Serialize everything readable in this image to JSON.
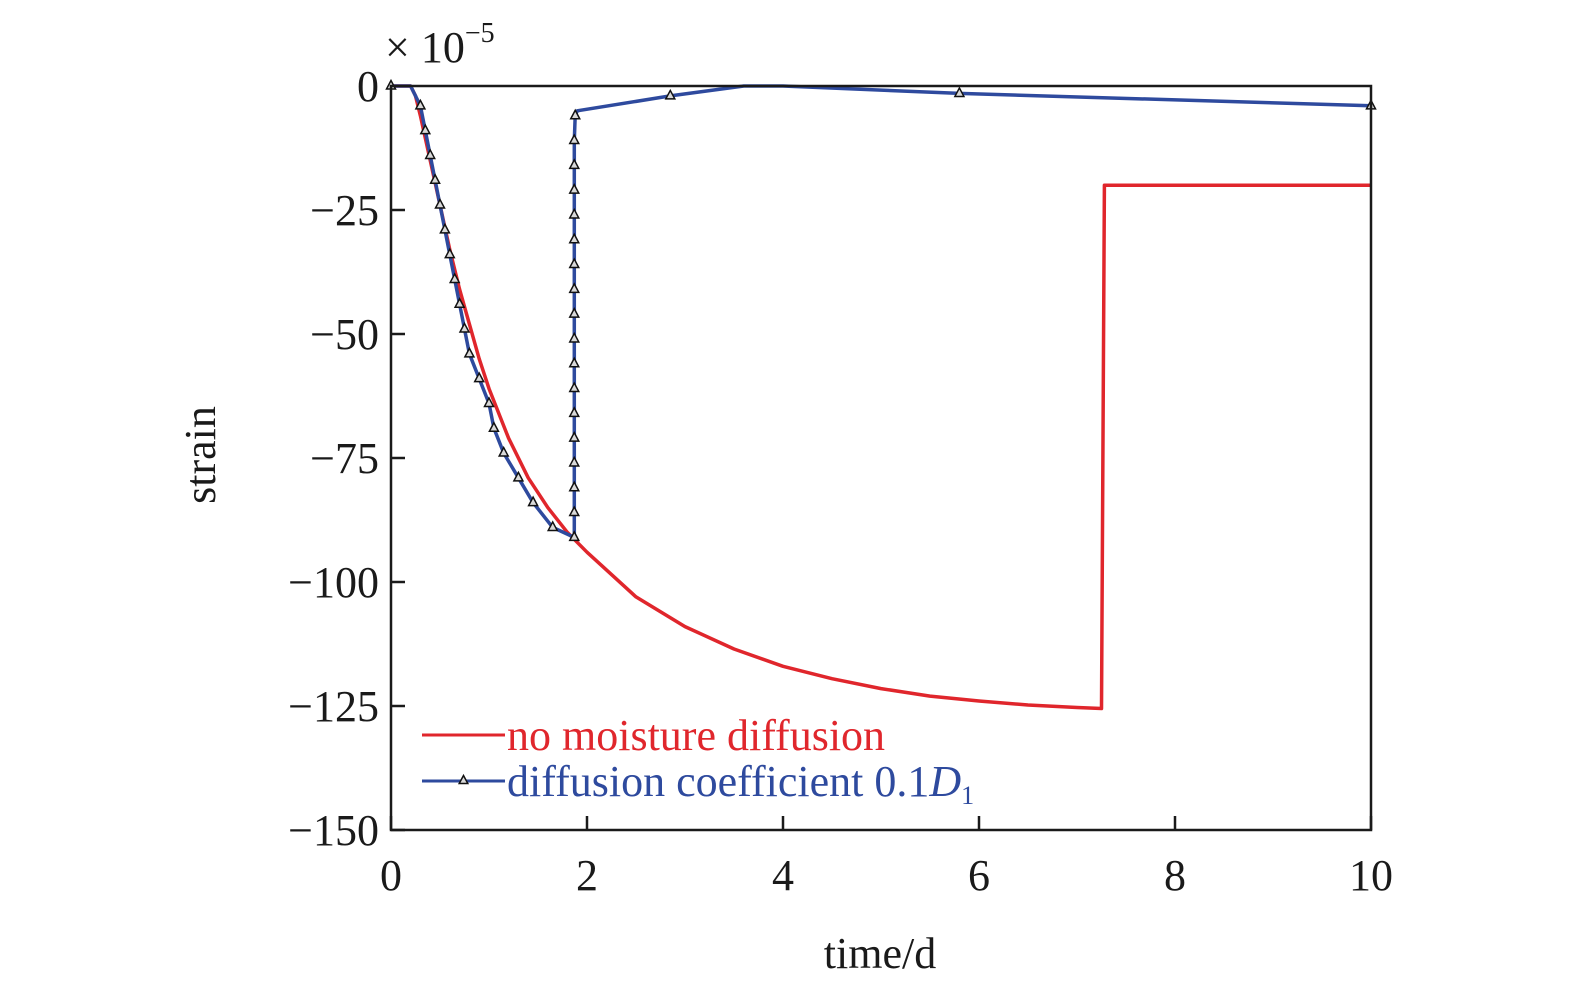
{
  "chart_data": {
    "type": "line",
    "title": "",
    "xlabel": "time/d",
    "ylabel": "strain",
    "y_multiplier": {
      "prefix": "× 10",
      "exponent": "−5"
    },
    "xlim": [
      0,
      10
    ],
    "ylim": [
      -150,
      0
    ],
    "xticks": [
      0,
      2,
      4,
      6,
      8,
      10
    ],
    "xtick_labels": [
      "0",
      "2",
      "4",
      "6",
      "8",
      "10"
    ],
    "yticks": [
      0,
      -25,
      -50,
      -75,
      -100,
      -125,
      -150
    ],
    "ytick_labels": [
      "0",
      "−25",
      "−50",
      "−75",
      "−100",
      "−125",
      "−150"
    ],
    "grid": false,
    "legend_position": "bottom-left",
    "series": [
      {
        "name": "no moisture diffusion",
        "color": "#e0262c",
        "marker": "none",
        "points": [
          [
            0,
            0
          ],
          [
            0.2,
            0
          ],
          [
            0.25,
            -2
          ],
          [
            0.3,
            -6
          ],
          [
            0.4,
            -15
          ],
          [
            0.5,
            -24
          ],
          [
            0.6,
            -33
          ],
          [
            0.7,
            -41
          ],
          [
            0.8,
            -48
          ],
          [
            0.9,
            -55
          ],
          [
            1.0,
            -61
          ],
          [
            1.2,
            -71
          ],
          [
            1.4,
            -79
          ],
          [
            1.6,
            -85
          ],
          [
            1.8,
            -90
          ],
          [
            2.0,
            -94
          ],
          [
            2.5,
            -103
          ],
          [
            3.0,
            -109
          ],
          [
            3.5,
            -113.5
          ],
          [
            4.0,
            -117
          ],
          [
            4.5,
            -119.5
          ],
          [
            5.0,
            -121.5
          ],
          [
            5.5,
            -123
          ],
          [
            6.0,
            -124
          ],
          [
            6.5,
            -124.8
          ],
          [
            7.0,
            -125.3
          ],
          [
            7.25,
            -125.5
          ],
          [
            7.28,
            -20
          ],
          [
            8.0,
            -20
          ],
          [
            10.0,
            -20
          ]
        ]
      },
      {
        "name": "diffusion coefficient 0.1",
        "name_symbol": "D",
        "name_subscript": "1",
        "color": "#2e4a9e",
        "marker": "triangle",
        "points": [
          [
            0,
            0
          ],
          [
            0.2,
            0
          ],
          [
            0.3,
            -4
          ],
          [
            0.35,
            -9
          ],
          [
            0.4,
            -14
          ],
          [
            0.45,
            -19
          ],
          [
            0.5,
            -24
          ],
          [
            0.55,
            -29
          ],
          [
            0.6,
            -34
          ],
          [
            0.65,
            -39
          ],
          [
            0.7,
            -44
          ],
          [
            0.75,
            -49
          ],
          [
            0.8,
            -54
          ],
          [
            0.9,
            -59
          ],
          [
            1.0,
            -64
          ],
          [
            1.05,
            -69
          ],
          [
            1.15,
            -74
          ],
          [
            1.3,
            -79
          ],
          [
            1.45,
            -84
          ],
          [
            1.65,
            -89
          ],
          [
            1.87,
            -91
          ],
          [
            1.87,
            -86
          ],
          [
            1.87,
            -81
          ],
          [
            1.87,
            -76
          ],
          [
            1.87,
            -71
          ],
          [
            1.87,
            -66
          ],
          [
            1.87,
            -61
          ],
          [
            1.87,
            -56
          ],
          [
            1.87,
            -51
          ],
          [
            1.87,
            -46
          ],
          [
            1.87,
            -41
          ],
          [
            1.87,
            -36
          ],
          [
            1.87,
            -31
          ],
          [
            1.87,
            -26
          ],
          [
            1.87,
            -21
          ],
          [
            1.87,
            -16
          ],
          [
            1.87,
            -11
          ],
          [
            1.88,
            -6
          ],
          [
            1.9,
            -5
          ],
          [
            2.85,
            -2
          ],
          [
            3.6,
            0
          ],
          [
            4.0,
            0
          ],
          [
            5.8,
            -1.5
          ],
          [
            10,
            -4
          ]
        ],
        "marker_points": [
          [
            0,
            0
          ],
          [
            0.3,
            -4
          ],
          [
            0.35,
            -9
          ],
          [
            0.4,
            -14
          ],
          [
            0.45,
            -19
          ],
          [
            0.5,
            -24
          ],
          [
            0.55,
            -29
          ],
          [
            0.6,
            -34
          ],
          [
            0.65,
            -39
          ],
          [
            0.7,
            -44
          ],
          [
            0.75,
            -49
          ],
          [
            0.8,
            -54
          ],
          [
            0.9,
            -59
          ],
          [
            1.0,
            -64
          ],
          [
            1.05,
            -69
          ],
          [
            1.15,
            -74
          ],
          [
            1.3,
            -79
          ],
          [
            1.45,
            -84
          ],
          [
            1.65,
            -89
          ],
          [
            1.87,
            -91
          ],
          [
            1.87,
            -86
          ],
          [
            1.87,
            -81
          ],
          [
            1.87,
            -76
          ],
          [
            1.87,
            -71
          ],
          [
            1.87,
            -66
          ],
          [
            1.87,
            -61
          ],
          [
            1.87,
            -56
          ],
          [
            1.87,
            -51
          ],
          [
            1.87,
            -46
          ],
          [
            1.87,
            -41
          ],
          [
            1.87,
            -36
          ],
          [
            1.87,
            -31
          ],
          [
            1.87,
            -26
          ],
          [
            1.87,
            -21
          ],
          [
            1.87,
            -16
          ],
          [
            1.87,
            -11
          ],
          [
            1.88,
            -6
          ],
          [
            2.85,
            -2
          ],
          [
            5.8,
            -1.5
          ],
          [
            10,
            -4
          ]
        ]
      }
    ]
  }
}
